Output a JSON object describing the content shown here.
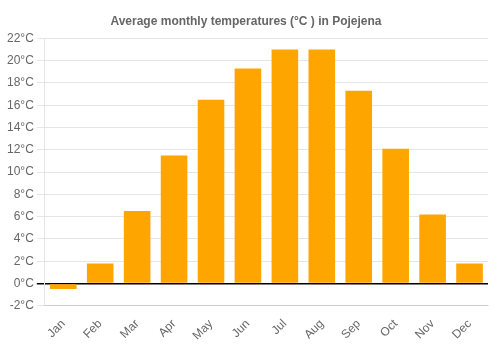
{
  "chart_data": {
    "type": "bar",
    "title": "Average monthly temperatures (°C ) in Pojejena",
    "categories": [
      "Jan",
      "Feb",
      "Mar",
      "Apr",
      "May",
      "Jun",
      "Jul",
      "Aug",
      "Sep",
      "Oct",
      "Nov",
      "Dec"
    ],
    "values": [
      -0.5,
      1.8,
      6.5,
      11.5,
      16.5,
      19.3,
      21.0,
      21.0,
      17.3,
      12.1,
      6.2,
      1.8
    ],
    "color": "#FFA500",
    "ylim": [
      -2,
      22
    ],
    "yticks": [
      {
        "value": -2,
        "label": "-2°C"
      },
      {
        "value": 0,
        "label": "0°C"
      },
      {
        "value": 2,
        "label": "2°C"
      },
      {
        "value": 4,
        "label": "4°C"
      },
      {
        "value": 6,
        "label": "6°C"
      },
      {
        "value": 8,
        "label": "8°C"
      },
      {
        "value": 10,
        "label": "10°C"
      },
      {
        "value": 12,
        "label": "12°C"
      },
      {
        "value": 14,
        "label": "14°C"
      },
      {
        "value": 16,
        "label": "16°C"
      },
      {
        "value": 18,
        "label": "18°C"
      },
      {
        "value": 20,
        "label": "20°C"
      },
      {
        "value": 22,
        "label": "22°C"
      }
    ],
    "grid": true
  }
}
